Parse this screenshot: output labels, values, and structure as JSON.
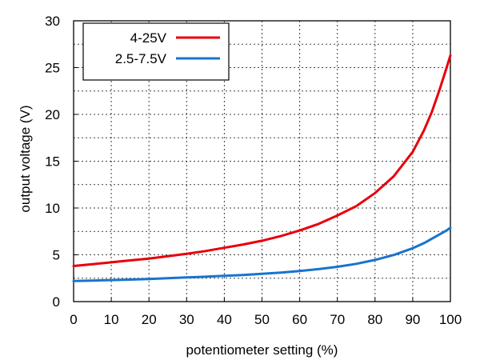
{
  "chart_data": {
    "type": "line",
    "xlabel": "potentiometer setting (%)",
    "ylabel": "output voltage (V)",
    "xlim": [
      0,
      100
    ],
    "ylim": [
      0,
      30
    ],
    "xticks": [
      0,
      10,
      20,
      30,
      40,
      50,
      60,
      70,
      80,
      90,
      100
    ],
    "yticks": [
      0,
      5,
      10,
      15,
      20,
      25,
      30
    ],
    "grid": true,
    "legend_position": "top-left",
    "series": [
      {
        "name": "4-25V",
        "color": "#e8000b",
        "x": [
          0,
          5,
          10,
          15,
          20,
          25,
          30,
          35,
          40,
          45,
          50,
          55,
          60,
          65,
          70,
          75,
          80,
          85,
          90,
          93,
          95,
          97,
          99,
          100
        ],
        "y": [
          3.8,
          4.0,
          4.2,
          4.4,
          4.6,
          4.85,
          5.1,
          5.4,
          5.75,
          6.1,
          6.5,
          7.0,
          7.6,
          8.3,
          9.2,
          10.2,
          11.6,
          13.4,
          16.0,
          18.3,
          20.2,
          22.5,
          25.0,
          26.3
        ]
      },
      {
        "name": "2.5-7.5V",
        "color": "#1874cd",
        "x": [
          0,
          5,
          10,
          15,
          20,
          25,
          30,
          35,
          40,
          45,
          50,
          55,
          60,
          65,
          70,
          75,
          80,
          85,
          90,
          93,
          95,
          97,
          99,
          100
        ],
        "y": [
          2.2,
          2.25,
          2.3,
          2.35,
          2.42,
          2.5,
          2.58,
          2.66,
          2.75,
          2.85,
          2.97,
          3.1,
          3.27,
          3.47,
          3.72,
          4.03,
          4.45,
          4.98,
          5.7,
          6.25,
          6.7,
          7.15,
          7.6,
          7.9
        ]
      }
    ]
  }
}
